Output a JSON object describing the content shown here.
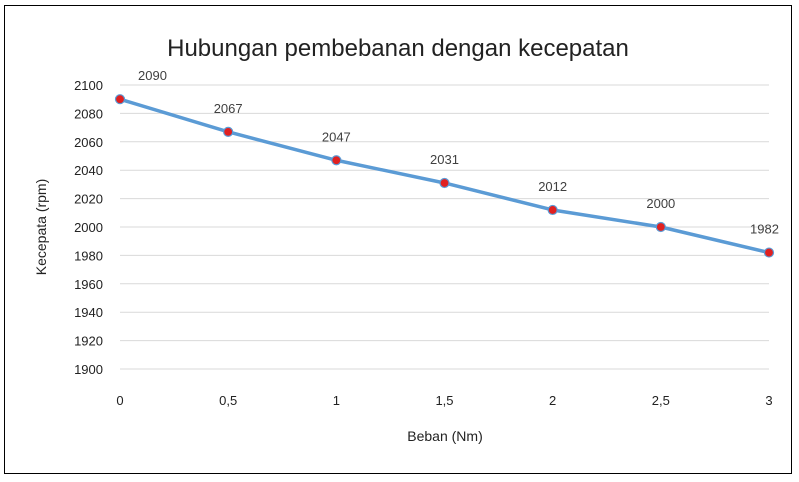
{
  "chart_data": {
    "type": "line",
    "title": "Hubungan pembebanan dengan kecepatan",
    "xlabel": "Beban (Nm)",
    "ylabel": "Kecepata (rpm)",
    "categories": [
      "0",
      "0,5",
      "1",
      "1,5",
      "2",
      "2,5",
      "3"
    ],
    "x": [
      0,
      0.5,
      1,
      1.5,
      2,
      2.5,
      3
    ],
    "series": [
      {
        "values": [
          2090,
          2067,
          2047,
          2031,
          2012,
          2000,
          1982
        ],
        "data_labels": [
          "2090",
          "2067",
          "2047",
          "2031",
          "2012",
          "2000",
          "1982"
        ],
        "line_color": "#5b9bd5",
        "marker_color": "#e02020"
      }
    ],
    "xlim": [
      0,
      3
    ],
    "ylim": [
      1900,
      2100
    ],
    "yticks": [
      "1900",
      "1920",
      "1940",
      "1960",
      "1980",
      "2000",
      "2020",
      "2040",
      "2060",
      "2080",
      "2100"
    ],
    "grid": true,
    "legend": "none"
  }
}
